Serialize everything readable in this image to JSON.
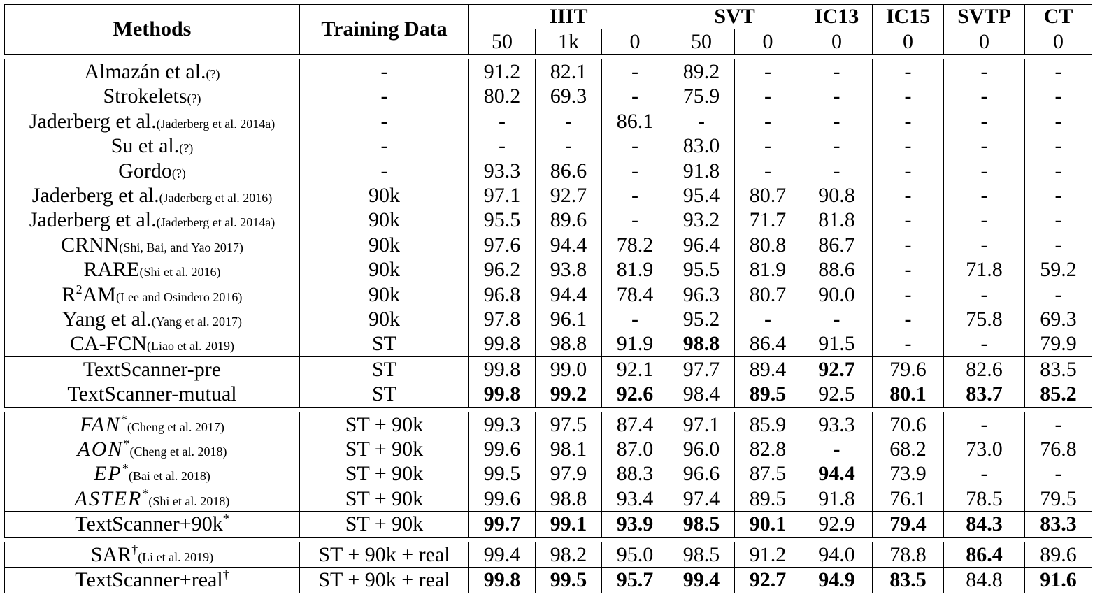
{
  "headers": {
    "methods": "Methods",
    "training_data": "Training Data",
    "groups": [
      "IIIT",
      "SVT",
      "IC13",
      "IC15",
      "SVTP",
      "CT"
    ],
    "sub": [
      "50",
      "1k",
      "0",
      "50",
      "0",
      "0",
      "0",
      "0",
      "0"
    ]
  },
  "section1": [
    {
      "name": "Almazán et al.",
      "cite": "(?)",
      "data": "-",
      "vals": [
        "91.2",
        "82.1",
        "-",
        "89.2",
        "-",
        "-",
        "-",
        "-",
        "-"
      ]
    },
    {
      "name": "Strokelets",
      "cite": "(?)",
      "data": "-",
      "vals": [
        "80.2",
        "69.3",
        "-",
        "75.9",
        "-",
        "-",
        "-",
        "-",
        "-"
      ]
    },
    {
      "name": "Jaderberg et al.",
      "cite": "(Jaderberg et al. 2014a)",
      "data": "-",
      "vals": [
        "-",
        "-",
        "86.1",
        "-",
        "-",
        "-",
        "-",
        "-",
        "-"
      ]
    },
    {
      "name": "Su et al.",
      "cite": "(?)",
      "data": "-",
      "vals": [
        "-",
        "-",
        "-",
        "83.0",
        "-",
        "-",
        "-",
        "-",
        "-"
      ]
    },
    {
      "name": "Gordo",
      "cite": "(?)",
      "data": "-",
      "vals": [
        "93.3",
        "86.6",
        "-",
        "91.8",
        "-",
        "-",
        "-",
        "-",
        "-"
      ]
    },
    {
      "name": "Jaderberg et al.",
      "cite": "(Jaderberg et al. 2016)",
      "data": "90k",
      "vals": [
        "97.1",
        "92.7",
        "-",
        "95.4",
        "80.7",
        "90.8",
        "-",
        "-",
        "-"
      ]
    },
    {
      "name": "Jaderberg et al.",
      "cite": "(Jaderberg et al. 2014a)",
      "data": "90k",
      "vals": [
        "95.5",
        "89.6",
        "-",
        "93.2",
        "71.7",
        "81.8",
        "-",
        "-",
        "-"
      ]
    },
    {
      "name": "CRNN",
      "cite": "(Shi, Bai, and Yao 2017)",
      "data": "90k",
      "vals": [
        "97.6",
        "94.4",
        "78.2",
        "96.4",
        "80.8",
        "86.7",
        "-",
        "-",
        "-"
      ]
    },
    {
      "name": "RARE",
      "cite": "(Shi et al. 2016)",
      "data": "90k",
      "vals": [
        "96.2",
        "93.8",
        "81.9",
        "95.5",
        "81.9",
        "88.6",
        "-",
        "71.8",
        "59.2"
      ]
    },
    {
      "name": "R",
      "sup": "2",
      "name2": "AM",
      "cite": "(Lee and Osindero 2016)",
      "data": "90k",
      "vals": [
        "96.8",
        "94.4",
        "78.4",
        "96.3",
        "80.7",
        "90.0",
        "-",
        "-",
        "-"
      ]
    },
    {
      "name": "Yang et al.",
      "cite": "(Yang et al. 2017)",
      "data": "90k",
      "vals": [
        "97.8",
        "96.1",
        "-",
        "95.2",
        "-",
        "-",
        "-",
        "75.8",
        "69.3"
      ]
    },
    {
      "name": "CA-FCN",
      "cite": "(Liao et al. 2019)",
      "data": "ST",
      "vals": [
        "99.8",
        "98.8",
        "91.9",
        "98.8",
        "86.4",
        "91.5",
        "-",
        "-",
        "79.9"
      ]
    }
  ],
  "section1b": [
    {
      "name": "TextScanner-pre",
      "data": "ST",
      "vals": [
        "99.8",
        "99.0",
        "92.1",
        "97.7",
        "89.4",
        "92.7",
        "79.6",
        "82.6",
        "83.5"
      ]
    },
    {
      "name": "TextScanner-mutual",
      "data": "ST",
      "vals": [
        "99.8",
        "99.2",
        "92.6",
        "98.4",
        "89.5",
        "92.5",
        "80.1",
        "83.7",
        "85.2"
      ]
    }
  ],
  "section2": [
    {
      "name": "FAN",
      "sup": "*",
      "cite": "(Cheng et al. 2017)",
      "data": "ST + 90k",
      "vals": [
        "99.3",
        "97.5",
        "87.4",
        "97.1",
        "85.9",
        "93.3",
        "70.6",
        "-",
        "-"
      ]
    },
    {
      "name": "AON",
      "sup": "*",
      "cite": "(Cheng et al. 2018)",
      "data": "ST + 90k",
      "vals": [
        "99.6",
        "98.1",
        "87.0",
        "96.0",
        "82.8",
        "-",
        "68.2",
        "73.0",
        "76.8"
      ]
    },
    {
      "name": "EP",
      "sup": "*",
      "cite": "(Bai et al. 2018)",
      "data": "ST + 90k",
      "vals": [
        "99.5",
        "97.9",
        "88.3",
        "96.6",
        "87.5",
        "94.4",
        "73.9",
        "-",
        "-"
      ]
    },
    {
      "name": "ASTER",
      "sup": "*",
      "cite": "(Shi et al. 2018)",
      "data": "ST + 90k",
      "vals": [
        "99.6",
        "98.8",
        "93.4",
        "97.4",
        "89.5",
        "91.8",
        "76.1",
        "78.5",
        "79.5"
      ]
    }
  ],
  "section2b": [
    {
      "name": "TextScanner+90k",
      "sup": "*",
      "data": "ST + 90k",
      "vals": [
        "99.7",
        "99.1",
        "93.9",
        "98.5",
        "90.1",
        "92.9",
        "79.4",
        "84.3",
        "83.3"
      ]
    }
  ],
  "section3": [
    {
      "name": "SAR",
      "sup": "†",
      "cite": "(Li et al. 2019)",
      "data": "ST + 90k + real",
      "vals": [
        "99.4",
        "98.2",
        "95.0",
        "98.5",
        "91.2",
        "94.0",
        "78.8",
        "86.4",
        "89.6"
      ]
    },
    {
      "name": "TextScanner+real",
      "sup": "†",
      "data": "ST + 90k + real",
      "vals": [
        "99.8",
        "99.5",
        "95.7",
        "99.4",
        "92.7",
        "94.9",
        "83.5",
        "84.8",
        "91.6"
      ]
    }
  ]
}
